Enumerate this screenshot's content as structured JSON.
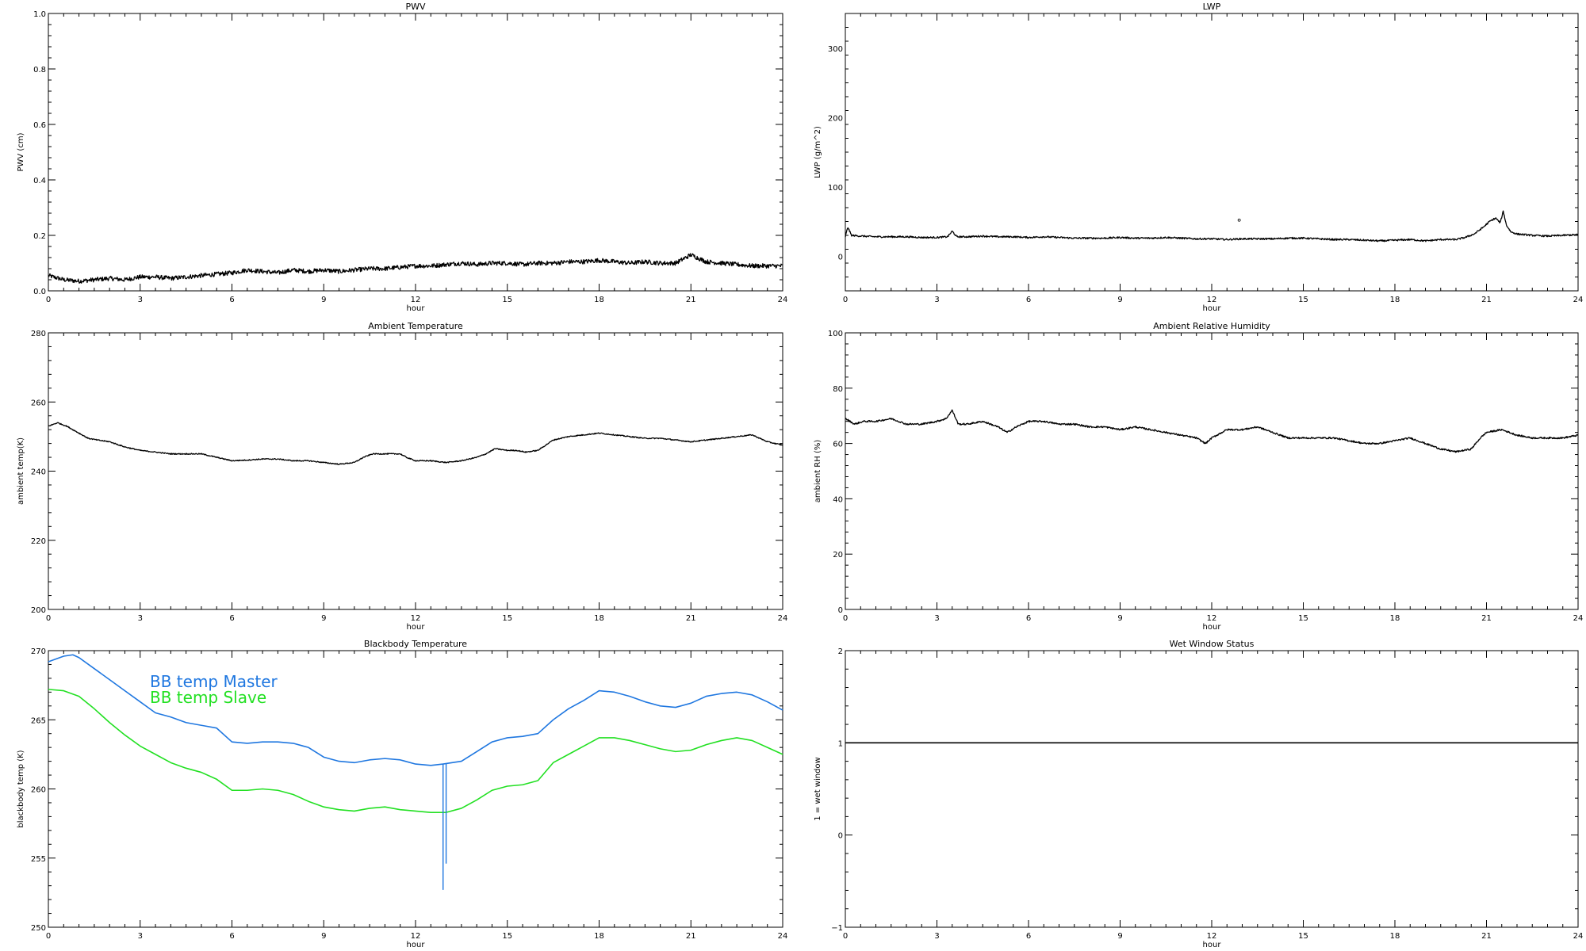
{
  "chart_data": [
    {
      "id": "pwv",
      "type": "line",
      "title": "PWV",
      "xlabel": "hour",
      "ylabel": "PWV (cm)",
      "xlim": [
        0,
        24
      ],
      "ylim": [
        0.0,
        1.0
      ],
      "x_ticks": [
        "0",
        "3",
        "6",
        "9",
        "12",
        "15",
        "18",
        "21",
        "24"
      ],
      "y_ticks": [
        {
          "value": 0.0,
          "label": "0.0"
        },
        {
          "value": 0.2,
          "label": "0.2"
        },
        {
          "value": 0.4,
          "label": "0.4"
        },
        {
          "value": 0.6,
          "label": "0.6"
        },
        {
          "value": 0.8,
          "label": "0.8"
        },
        {
          "value": 1.0,
          "label": "1.0"
        }
      ],
      "noise": 0.008,
      "series": [
        {
          "color": "#000000",
          "x": [
            0,
            0.5,
            1,
            1.5,
            2,
            2.5,
            3,
            3.5,
            4,
            4.5,
            5,
            5.5,
            6,
            6.5,
            7,
            7.5,
            8,
            8.5,
            9,
            9.5,
            10,
            10.5,
            11,
            11.5,
            12,
            12.5,
            13,
            13.5,
            14,
            14.5,
            15,
            15.5,
            16,
            16.5,
            17,
            17.5,
            18,
            18.5,
            19,
            19.5,
            20,
            20.5,
            21,
            21.5,
            22,
            22.5,
            23,
            23.5,
            24
          ],
          "y": [
            0.055,
            0.04,
            0.035,
            0.04,
            0.045,
            0.04,
            0.05,
            0.05,
            0.045,
            0.05,
            0.055,
            0.06,
            0.065,
            0.075,
            0.07,
            0.065,
            0.075,
            0.07,
            0.075,
            0.07,
            0.075,
            0.08,
            0.08,
            0.085,
            0.09,
            0.09,
            0.095,
            0.1,
            0.095,
            0.1,
            0.1,
            0.095,
            0.1,
            0.1,
            0.105,
            0.105,
            0.11,
            0.105,
            0.1,
            0.105,
            0.1,
            0.1,
            0.13,
            0.105,
            0.1,
            0.095,
            0.09,
            0.09,
            0.09
          ]
        }
      ]
    },
    {
      "id": "lwp",
      "type": "line",
      "title": "LWP",
      "xlabel": "hour",
      "ylabel": "LWP (g/m^2)",
      "xlim": [
        0,
        24
      ],
      "ylim": [
        -50,
        350
      ],
      "x_ticks": [
        "0",
        "3",
        "6",
        "9",
        "12",
        "15",
        "18",
        "21",
        "24"
      ],
      "y_ticks": [
        {
          "value": 0,
          "label": "0"
        },
        {
          "value": 100,
          "label": "100"
        },
        {
          "value": 200,
          "label": "200"
        },
        {
          "value": 300,
          "label": "300"
        }
      ],
      "noise": 1.2,
      "outlier": {
        "x": 12.9,
        "y": 52
      },
      "series": [
        {
          "color": "#000000",
          "x": [
            0,
            0.08,
            0.2,
            0.5,
            1,
            1.5,
            2,
            2.5,
            3,
            3.35,
            3.5,
            3.65,
            4,
            4.5,
            5,
            5.5,
            6,
            6.5,
            7,
            7.5,
            8,
            8.5,
            9,
            9.5,
            10,
            10.5,
            11,
            11.5,
            12,
            12.5,
            13,
            13.5,
            14,
            14.5,
            15,
            15.5,
            16,
            16.5,
            17,
            17.5,
            18,
            18.5,
            19,
            19.5,
            20,
            20.3,
            20.6,
            20.9,
            21.1,
            21.3,
            21.45,
            21.55,
            21.65,
            21.8,
            22,
            22.5,
            23,
            23.5,
            24
          ],
          "y": [
            28,
            42,
            30,
            29,
            28,
            28,
            28,
            27,
            27,
            28,
            36,
            28,
            28,
            29,
            28,
            28,
            27,
            28,
            27,
            26,
            26,
            26,
            27,
            26,
            26,
            27,
            26,
            25,
            25,
            24,
            25,
            25,
            25,
            26,
            26,
            25,
            24,
            24,
            23,
            22,
            23,
            24,
            22,
            24,
            24,
            27,
            32,
            42,
            50,
            55,
            48,
            65,
            45,
            35,
            32,
            30,
            29,
            30,
            31
          ]
        }
      ]
    },
    {
      "id": "ambient-temp",
      "type": "line",
      "title": "Ambient Temperature",
      "xlabel": "hour",
      "ylabel": "ambient temp(K)",
      "xlim": [
        0,
        24
      ],
      "ylim": [
        200,
        280
      ],
      "x_ticks": [
        "0",
        "3",
        "6",
        "9",
        "12",
        "15",
        "18",
        "21",
        "24"
      ],
      "y_ticks": [
        {
          "value": 200,
          "label": "200"
        },
        {
          "value": 220,
          "label": "220"
        },
        {
          "value": 240,
          "label": "240"
        },
        {
          "value": 260,
          "label": "260"
        }
      ],
      "y_ticks_extra": [
        {
          "value": 280,
          "label": "280"
        }
      ],
      "noise": 0.15,
      "series": [
        {
          "color": "#000000",
          "x": [
            0,
            0.3,
            0.6,
            1,
            1.3,
            1.6,
            2,
            2.5,
            3,
            3.5,
            4,
            4.5,
            5,
            5.5,
            6,
            6.5,
            7,
            7.5,
            8,
            8.5,
            9,
            9.5,
            10,
            10.3,
            10.6,
            11,
            11.5,
            11.7,
            12,
            12.5,
            13,
            13.5,
            14,
            14.3,
            14.6,
            15,
            15.3,
            15.6,
            16,
            16.5,
            17,
            17.5,
            18,
            18.5,
            19,
            19.5,
            20,
            20.5,
            21,
            21.5,
            22,
            22.5,
            23,
            23.5,
            24
          ],
          "y": [
            253,
            254,
            253,
            251,
            249.5,
            249,
            248.5,
            247,
            246,
            245.5,
            245,
            245,
            245,
            244,
            243,
            243.2,
            243.5,
            243.5,
            243,
            243,
            242.5,
            242,
            242.5,
            244,
            245,
            245,
            245,
            244,
            243,
            243,
            242.5,
            243,
            244,
            245,
            246.5,
            246,
            246,
            245.5,
            246,
            249,
            250,
            250.5,
            251,
            250.5,
            250,
            249.5,
            249.5,
            249,
            248.5,
            249,
            249.5,
            250,
            250.5,
            248.5,
            247.5
          ]
        }
      ]
    },
    {
      "id": "ambient-rh",
      "type": "line",
      "title": "Ambient Relative Humidity",
      "xlabel": "hour",
      "ylabel": "ambient RH (%)",
      "xlim": [
        0,
        24
      ],
      "ylim": [
        0,
        100
      ],
      "x_ticks": [
        "0",
        "3",
        "6",
        "9",
        "12",
        "15",
        "18",
        "21",
        "24"
      ],
      "y_ticks": [
        {
          "value": 0,
          "label": "0"
        },
        {
          "value": 20,
          "label": "20"
        },
        {
          "value": 40,
          "label": "40"
        },
        {
          "value": 60,
          "label": "60"
        },
        {
          "value": 80,
          "label": "80"
        },
        {
          "value": 100,
          "label": "100"
        }
      ],
      "noise": 0.3,
      "series": [
        {
          "color": "#000000",
          "x": [
            0,
            0.3,
            0.6,
            1,
            1.5,
            2,
            2.5,
            3,
            3.3,
            3.5,
            3.7,
            4,
            4.5,
            5,
            5.3,
            5.6,
            6,
            6.5,
            7,
            7.5,
            8,
            8.5,
            9,
            9.5,
            10,
            10.5,
            11,
            11.5,
            11.8,
            12,
            12.5,
            13,
            13.5,
            14,
            14.5,
            15,
            15.5,
            16,
            16.5,
            17,
            17.5,
            18,
            18.5,
            19,
            19.5,
            20,
            20.5,
            20.8,
            21,
            21.5,
            22,
            22.5,
            23,
            23.5,
            24
          ],
          "y": [
            69,
            67,
            68,
            68,
            69,
            67,
            67,
            68,
            69,
            72,
            67,
            67,
            68,
            66,
            64,
            66,
            68,
            68,
            67,
            67,
            66,
            66,
            65,
            66,
            65,
            64,
            63,
            62,
            60,
            62,
            65,
            65,
            66,
            64,
            62,
            62,
            62,
            62,
            61,
            60,
            60,
            61,
            62,
            60,
            58,
            57,
            58,
            62,
            64,
            65,
            63,
            62,
            62,
            62,
            63
          ]
        }
      ]
    },
    {
      "id": "bb-temp",
      "type": "line",
      "title": "Blackbody Temperature",
      "xlabel": "hour",
      "ylabel": "blackbody temp (K)",
      "xlim": [
        0,
        24
      ],
      "ylim": [
        250,
        270
      ],
      "x_ticks": [
        "0",
        "3",
        "6",
        "9",
        "12",
        "15",
        "18",
        "21",
        "24"
      ],
      "y_ticks": [
        {
          "value": 250,
          "label": "250"
        },
        {
          "value": 255,
          "label": "255"
        },
        {
          "value": 260,
          "label": "260"
        },
        {
          "value": 265,
          "label": "265"
        },
        {
          "value": 270,
          "label": "270"
        }
      ],
      "noise": 0,
      "legend": [
        "BB temp Master",
        "BB temp Slave"
      ],
      "spikes": [
        {
          "series": 0,
          "x": 12.9,
          "y": 252.7
        },
        {
          "series": 0,
          "x": 13.0,
          "y": 254.6
        }
      ],
      "series": [
        {
          "name": "BB temp Master",
          "color": "#1f77e0",
          "x": [
            0,
            0.5,
            0.8,
            1,
            1.5,
            2,
            2.5,
            3,
            3.5,
            4,
            4.5,
            5,
            5.5,
            6,
            6.5,
            7,
            7.5,
            8,
            8.5,
            9,
            9.5,
            10,
            10.5,
            11,
            11.5,
            12,
            12.5,
            12.9,
            13.2,
            13.5,
            14,
            14.5,
            15,
            15.5,
            16,
            16.5,
            17,
            17.5,
            18,
            18.5,
            19,
            19.5,
            20,
            20.5,
            21,
            21.5,
            22,
            22.5,
            23,
            23.5,
            24
          ],
          "y": [
            269.2,
            269.6,
            269.7,
            269.5,
            268.7,
            267.9,
            267.1,
            266.3,
            265.5,
            265.2,
            264.8,
            264.6,
            264.4,
            263.4,
            263.3,
            263.4,
            263.4,
            263.3,
            263.0,
            262.3,
            262.0,
            261.9,
            262.1,
            262.2,
            262.1,
            261.8,
            261.7,
            261.8,
            261.9,
            262.0,
            262.7,
            263.4,
            263.7,
            263.8,
            264.0,
            265.0,
            265.8,
            266.4,
            267.1,
            267.0,
            266.7,
            266.3,
            266.0,
            265.9,
            266.2,
            266.7,
            266.9,
            267.0,
            266.8,
            266.3,
            265.7
          ]
        },
        {
          "name": "BB temp Slave",
          "color": "#22e022",
          "x": [
            0,
            0.5,
            1,
            1.5,
            2,
            2.5,
            3,
            3.5,
            4,
            4.5,
            5,
            5.5,
            6,
            6.5,
            7,
            7.5,
            8,
            8.5,
            9,
            9.5,
            10,
            10.5,
            11,
            11.5,
            12,
            12.5,
            13,
            13.5,
            14,
            14.5,
            15,
            15.5,
            16,
            16.5,
            17,
            17.5,
            18,
            18.5,
            19,
            19.5,
            20,
            20.5,
            21,
            21.5,
            22,
            22.5,
            23,
            23.5,
            24
          ],
          "y": [
            267.2,
            267.1,
            266.7,
            265.8,
            264.8,
            263.9,
            263.1,
            262.5,
            261.9,
            261.5,
            261.2,
            260.7,
            259.9,
            259.9,
            260.0,
            259.9,
            259.6,
            259.1,
            258.7,
            258.5,
            258.4,
            258.6,
            258.7,
            258.5,
            258.4,
            258.3,
            258.3,
            258.6,
            259.2,
            259.9,
            260.2,
            260.3,
            260.6,
            261.9,
            262.5,
            263.1,
            263.7,
            263.7,
            263.5,
            263.2,
            262.9,
            262.7,
            262.8,
            263.2,
            263.5,
            263.7,
            263.5,
            263.0,
            262.5
          ]
        }
      ]
    },
    {
      "id": "wet-window",
      "type": "line",
      "title": "Wet Window Status",
      "xlabel": "hour",
      "ylabel": "1 = wet window",
      "xlim": [
        0,
        24
      ],
      "ylim": [
        -1,
        2
      ],
      "x_ticks": [
        "0",
        "3",
        "6",
        "9",
        "12",
        "15",
        "18",
        "21",
        "24"
      ],
      "y_ticks": [
        {
          "value": -1,
          "label": "−1"
        },
        {
          "value": 0,
          "label": "0"
        },
        {
          "value": 1,
          "label": "1"
        },
        {
          "value": 2,
          "label": "2"
        }
      ],
      "noise": 0,
      "series": [
        {
          "color": "#000000",
          "x": [
            0,
            24
          ],
          "y": [
            1,
            1
          ]
        }
      ]
    }
  ]
}
